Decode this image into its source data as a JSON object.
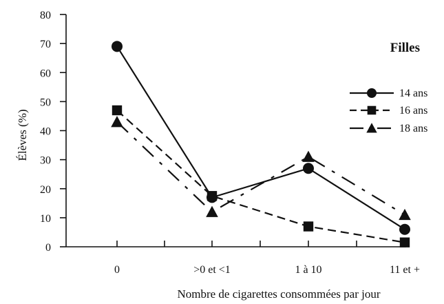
{
  "chart_data": {
    "type": "line",
    "title": "Filles",
    "xlabel": "Nombre de cigarettes consommées par jour",
    "ylabel": "Élèves (%)",
    "categories": [
      "0",
      ">0 et <1",
      "1 à 10",
      "11 et +"
    ],
    "ylim": [
      0,
      80
    ],
    "yticks": [
      0,
      10,
      20,
      30,
      40,
      50,
      60,
      70,
      80
    ],
    "grid": false,
    "legend_position": "right",
    "series": [
      {
        "name": "14 ans",
        "values": [
          69,
          17,
          27,
          6
        ],
        "marker": "circle",
        "line_style": "solid"
      },
      {
        "name": "16 ans",
        "values": [
          47,
          17.5,
          7,
          1.5
        ],
        "marker": "square",
        "line_style": "dashed"
      },
      {
        "name": "18 ans",
        "values": [
          43,
          12,
          31,
          11
        ],
        "marker": "triangle",
        "line_style": "dash-dot"
      }
    ],
    "colors": {
      "ink": "#111111"
    }
  }
}
